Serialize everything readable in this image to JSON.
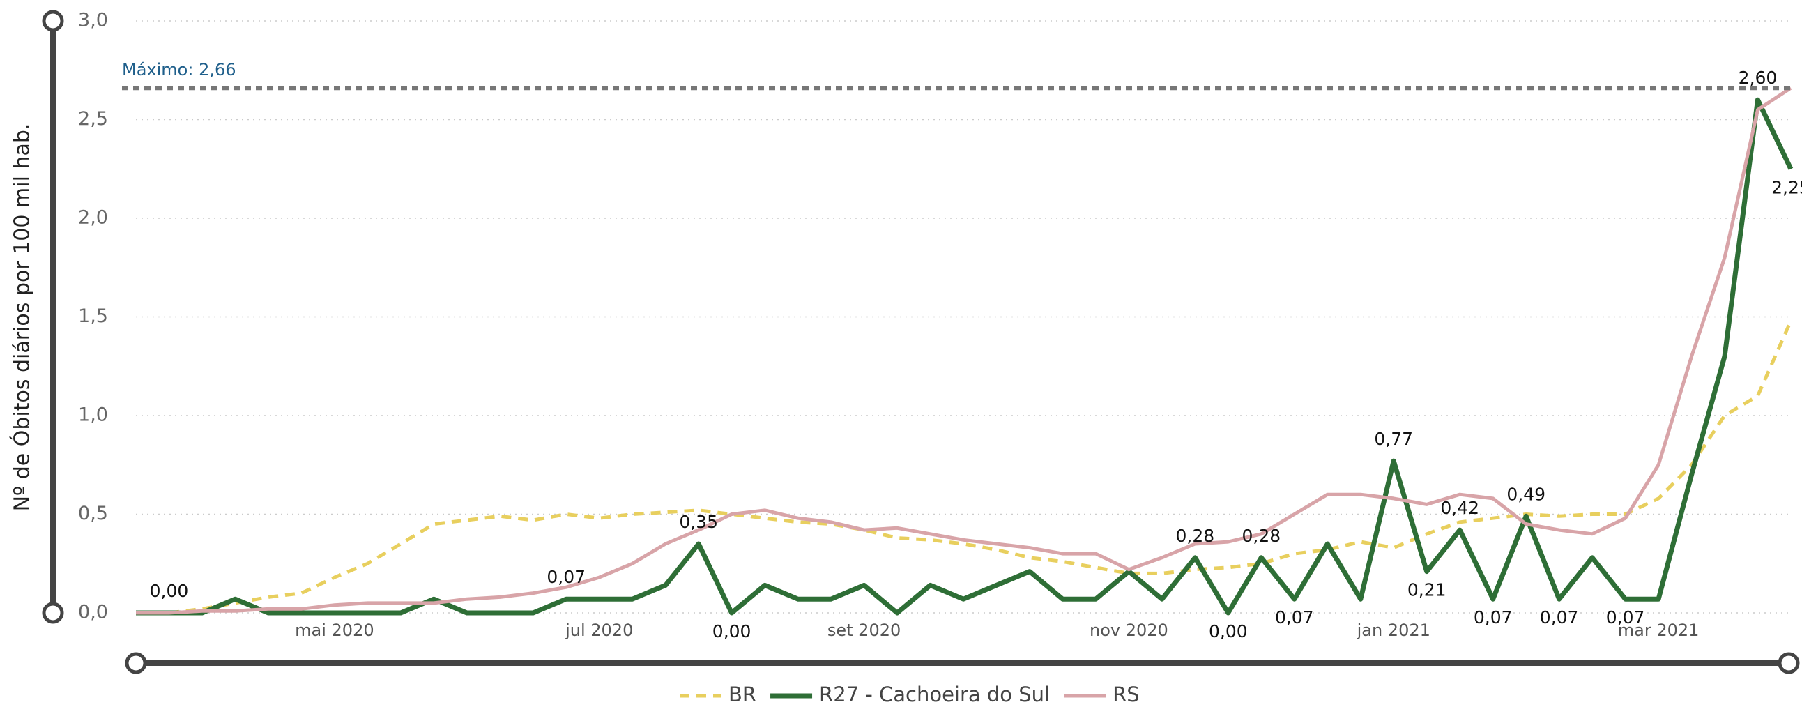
{
  "chart_data": {
    "type": "line",
    "y_label": "Nº de Óbitos diários por 100 mil hab.",
    "categories": [
      null,
      null,
      null,
      null,
      null,
      null,
      "mai 2020",
      null,
      null,
      null,
      null,
      null,
      null,
      null,
      "jul 2020",
      null,
      null,
      null,
      null,
      null,
      null,
      null,
      "set 2020",
      null,
      null,
      null,
      null,
      null,
      null,
      null,
      "nov 2020",
      null,
      null,
      null,
      null,
      null,
      null,
      null,
      "jan 2021",
      null,
      null,
      null,
      null,
      null,
      null,
      null,
      "mar 2021",
      null,
      null,
      null,
      null
    ],
    "series": [
      {
        "name": "BR",
        "color": "#e8cf5e",
        "dash": true,
        "values": [
          0,
          0,
          0.02,
          0.05,
          0.08,
          0.1,
          0.18,
          0.25,
          0.35,
          0.45,
          0.47,
          0.49,
          0.47,
          0.5,
          0.48,
          0.5,
          0.51,
          0.52,
          0.5,
          0.48,
          0.46,
          0.45,
          0.42,
          0.38,
          0.37,
          0.35,
          0.32,
          0.28,
          0.26,
          0.23,
          0.2,
          0.2,
          0.22,
          0.23,
          0.25,
          0.3,
          0.32,
          0.36,
          0.33,
          0.4,
          0.46,
          0.48,
          0.5,
          0.49,
          0.5,
          0.5,
          0.58,
          0.75,
          1.0,
          1.1,
          1.48
        ]
      },
      {
        "name": "R27 - Cachoeira do Sul",
        "color": "#2e6e36",
        "dash": false,
        "values": [
          0,
          0,
          0,
          0.07,
          0,
          0,
          0,
          0,
          0,
          0.07,
          0,
          0,
          0,
          0.07,
          0.07,
          0.07,
          0.14,
          0.35,
          0,
          0.14,
          0.07,
          0.07,
          0.14,
          0,
          0.14,
          0.07,
          0.14,
          0.21,
          0.07,
          0.07,
          0.21,
          0.07,
          0.28,
          0,
          0.28,
          0.07,
          0.35,
          0.07,
          0.77,
          0.21,
          0.42,
          0.07,
          0.49,
          0.07,
          0.28,
          0.07,
          0.07,
          0.7,
          1.3,
          2.6,
          2.25
        ],
        "value_labels": [
          null,
          "0,00",
          null,
          null,
          null,
          null,
          null,
          null,
          null,
          null,
          null,
          null,
          null,
          "0,07",
          null,
          null,
          null,
          "0,35",
          "0,00",
          null,
          null,
          null,
          null,
          null,
          null,
          null,
          null,
          null,
          null,
          null,
          null,
          null,
          "0,28",
          "0,00",
          "0,28",
          "0,07",
          null,
          null,
          "0,77",
          "0,21",
          "0,42",
          "0,07",
          "0,49",
          "0,07",
          null,
          "0,07",
          null,
          null,
          null,
          "2,60",
          "2,25"
        ]
      },
      {
        "name": "RS",
        "color": "#d8a4a8",
        "dash": false,
        "values": [
          0,
          0,
          0.01,
          0.01,
          0.02,
          0.02,
          0.04,
          0.05,
          0.05,
          0.05,
          0.07,
          0.08,
          0.1,
          0.13,
          0.18,
          0.25,
          0.35,
          0.42,
          0.5,
          0.52,
          0.48,
          0.46,
          0.42,
          0.43,
          0.4,
          0.37,
          0.35,
          0.33,
          0.3,
          0.3,
          0.22,
          0.28,
          0.35,
          0.36,
          0.4,
          0.5,
          0.6,
          0.6,
          0.58,
          0.55,
          0.6,
          0.58,
          0.45,
          0.42,
          0.4,
          0.48,
          0.75,
          1.3,
          1.8,
          2.55,
          2.66
        ]
      }
    ],
    "reference": {
      "label": "Máximo: 2,66",
      "value": 2.66
    },
    "ylim": [
      0,
      3
    ],
    "yticks": [
      {
        "value": 0,
        "label": "0,0"
      },
      {
        "value": 0.5,
        "label": "0,5"
      },
      {
        "value": 1,
        "label": "1,0"
      },
      {
        "value": 1.5,
        "label": "1,5"
      },
      {
        "value": 2,
        "label": "2,0"
      },
      {
        "value": 2.5,
        "label": "2,5"
      },
      {
        "value": 3,
        "label": "3,0"
      }
    ],
    "grid": true
  }
}
